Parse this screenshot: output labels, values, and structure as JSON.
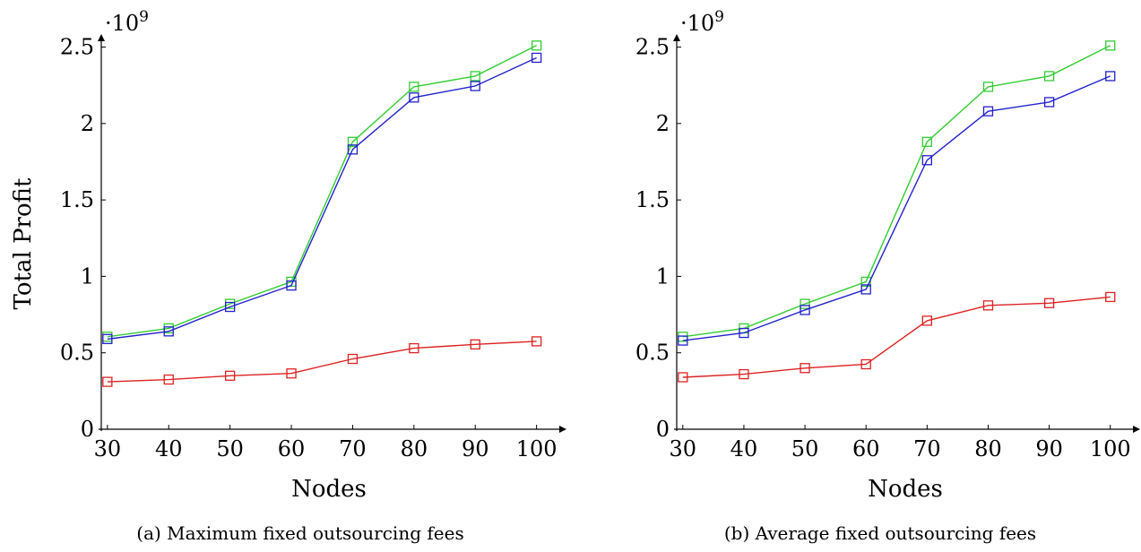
{
  "chart_data": [
    {
      "type": "line",
      "caption": "(a) Maximum fixed outsourcing fees",
      "xlabel": "Nodes",
      "ylabel": "Total Profit",
      "y_multiplier": "·10",
      "y_multiplier_exp": "9",
      "x": [
        30,
        40,
        50,
        60,
        70,
        80,
        90,
        100
      ],
      "xlim": [
        29,
        104
      ],
      "ylim": [
        0,
        2.55
      ],
      "xticks": [
        "30",
        "40",
        "50",
        "60",
        "70",
        "80",
        "90",
        "100"
      ],
      "yticks": [
        "0",
        "0.5",
        "1",
        "1.5",
        "2",
        "2.5"
      ],
      "ytick_values": [
        0,
        0.5,
        1,
        1.5,
        2,
        2.5
      ],
      "marker": "square",
      "series": [
        {
          "color": "#33cc33",
          "values": [
            0.605,
            0.66,
            0.82,
            0.965,
            1.88,
            2.24,
            2.31,
            2.51
          ]
        },
        {
          "color": "#2222cc",
          "values": [
            0.59,
            0.64,
            0.8,
            0.94,
            1.83,
            2.17,
            2.245,
            2.43
          ]
        },
        {
          "color": "#dd2222",
          "values": [
            0.31,
            0.325,
            0.35,
            0.365,
            0.46,
            0.53,
            0.555,
            0.575
          ]
        }
      ]
    },
    {
      "type": "line",
      "caption": "(b) Average fixed outsourcing fees",
      "xlabel": "Nodes",
      "ylabel": "",
      "y_multiplier": "·10",
      "y_multiplier_exp": "9",
      "x": [
        30,
        40,
        50,
        60,
        70,
        80,
        90,
        100
      ],
      "xlim": [
        29,
        104
      ],
      "ylim": [
        0,
        2.55
      ],
      "xticks": [
        "30",
        "40",
        "50",
        "60",
        "70",
        "80",
        "90",
        "100"
      ],
      "yticks": [
        "0",
        "0.5",
        "1",
        "1.5",
        "2",
        "2.5"
      ],
      "ytick_values": [
        0,
        0.5,
        1,
        1.5,
        2,
        2.5
      ],
      "marker": "square",
      "series": [
        {
          "color": "#33cc33",
          "values": [
            0.605,
            0.66,
            0.82,
            0.965,
            1.88,
            2.24,
            2.31,
            2.51
          ]
        },
        {
          "color": "#2222cc",
          "values": [
            0.58,
            0.63,
            0.78,
            0.915,
            1.76,
            2.08,
            2.14,
            2.31
          ]
        },
        {
          "color": "#dd2222",
          "values": [
            0.34,
            0.36,
            0.4,
            0.425,
            0.71,
            0.81,
            0.825,
            0.865
          ]
        }
      ]
    }
  ]
}
